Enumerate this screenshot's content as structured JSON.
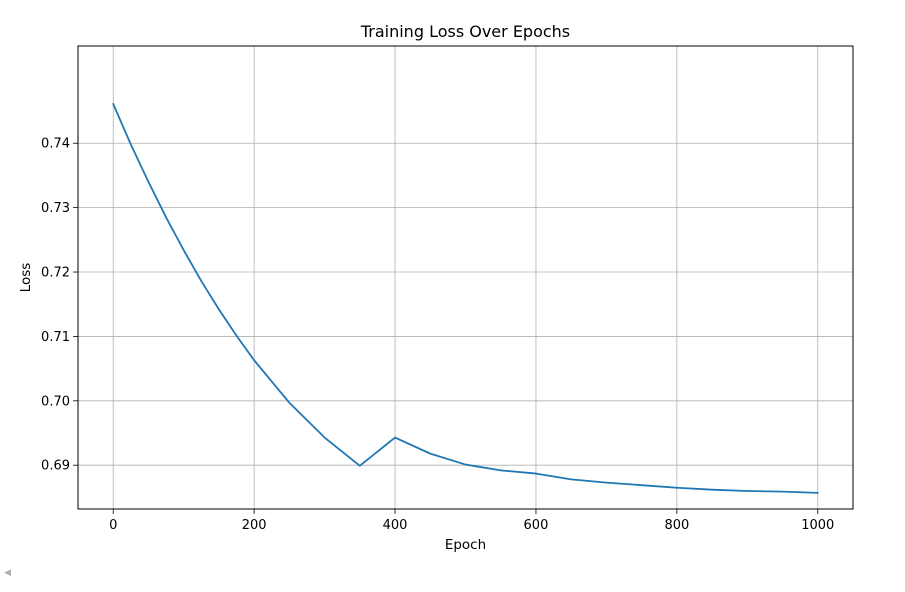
{
  "chart_data": {
    "type": "line",
    "title": "Training Loss Over Epochs",
    "xlabel": "Epoch",
    "ylabel": "Loss",
    "xlim": [
      -50,
      1050
    ],
    "ylim": [
      0.6832,
      0.7551
    ],
    "xticks": [
      0,
      200,
      400,
      600,
      800,
      1000
    ],
    "xtick_labels": [
      "0",
      "200",
      "400",
      "600",
      "800",
      "1000"
    ],
    "yticks": [
      0.69,
      0.7,
      0.71,
      0.72,
      0.73,
      0.74
    ],
    "ytick_labels": [
      "0.69",
      "0.70",
      "0.71",
      "0.72",
      "0.73",
      "0.74"
    ],
    "grid": true,
    "series": [
      {
        "color": "#1f77b4",
        "x": [
          0,
          25,
          50,
          75,
          100,
          125,
          150,
          175,
          200,
          250,
          300,
          350,
          400,
          450,
          500,
          550,
          600,
          650,
          700,
          750,
          800,
          850,
          900,
          950,
          1000
        ],
        "y": [
          0.7461,
          0.7398,
          0.734,
          0.7285,
          0.7234,
          0.7186,
          0.7142,
          0.7101,
          0.7063,
          0.6997,
          0.6943,
          0.6899,
          0.6943,
          0.6918,
          0.6901,
          0.6892,
          0.6887,
          0.6878,
          0.6873,
          0.6869,
          0.6865,
          0.6862,
          0.686,
          0.6859,
          0.6857
        ]
      }
    ]
  },
  "ui": {
    "back_arrow_icon": "caret-left-icon"
  }
}
